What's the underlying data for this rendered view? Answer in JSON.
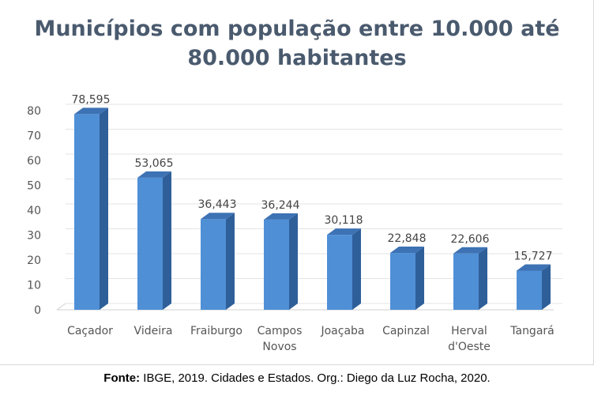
{
  "chart_data": {
    "type": "bar",
    "title_lines": [
      "Municípios com população entre 10.000 até",
      "80.000 habitantes"
    ],
    "categories": [
      [
        "Caçador"
      ],
      [
        "Videira"
      ],
      [
        "Fraiburgo"
      ],
      [
        "Campos",
        "Novos"
      ],
      [
        "Joaçaba"
      ],
      [
        "Capinzal"
      ],
      [
        "Herval",
        "d'Oeste"
      ],
      [
        "Tangará"
      ]
    ],
    "values": [
      78.595,
      53.065,
      36.443,
      36.244,
      30.118,
      22.848,
      22.606,
      15.727
    ],
    "data_labels": [
      "78,595",
      "53,065",
      "36,443",
      "36,244",
      "30,118",
      "22,848",
      "22,606",
      "15,727"
    ],
    "y_ticks": [
      0,
      10,
      20,
      30,
      40,
      50,
      60,
      70,
      80
    ],
    "ylim": [
      0,
      80
    ],
    "grid": true,
    "legend": "none",
    "bar_color": "#4f8fd6",
    "bar_side_color": "#2f5f99",
    "bar_top_color": "#3d72b4"
  },
  "source": {
    "label": "Fonte:",
    "text": " IBGE, 2019. Cidades e Estados. Org.: Diego da Luz Rocha, 2020."
  }
}
